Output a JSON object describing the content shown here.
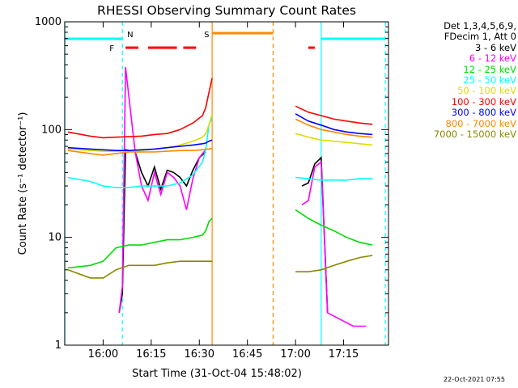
{
  "chart_data": {
    "type": "line",
    "title": "RHESSI Observing Summary Count Rates",
    "xlabel": "Start Time (31-Oct-04 15:48:02)",
    "ylabel": "Count Rate (s⁻¹ detector⁻¹)",
    "yscale": "log",
    "ylim": [
      1,
      1000
    ],
    "xlim": [
      "15:48:02",
      "17:29:00"
    ],
    "x_ticks": [
      "16:00",
      "16:15",
      "16:30",
      "16:45",
      "17:00",
      "17:15"
    ],
    "y_ticks": [
      "1",
      "10",
      "100",
      "1000"
    ],
    "legend_header": [
      "Det 1,3,4,5,6,9,",
      "FDecim 1, Att 0"
    ],
    "legend_position": "top-right",
    "grid": false,
    "series": [
      {
        "name": "3 - 6 keV",
        "color": "#000000",
        "x": [
          "16:05",
          "16:06",
          "16:07",
          "16:10",
          "16:12",
          "16:14",
          "16:16",
          "16:18",
          "16:20",
          "16:22",
          "16:24",
          "16:26",
          "16:28",
          "16:30",
          "16:32",
          "17:02",
          "17:04",
          "17:06",
          "17:08",
          "17:10"
        ],
        "y": [
          2.0,
          3.0,
          65,
          62,
          40,
          30,
          45,
          28,
          42,
          40,
          36,
          30,
          42,
          55,
          62,
          30,
          32,
          48,
          55,
          2.0
        ]
      },
      {
        "name": "6 - 12 keV",
        "color": "#ff00ff",
        "x": [
          "16:05",
          "16:06",
          "16:07",
          "16:10",
          "16:12",
          "16:14",
          "16:16",
          "16:18",
          "16:20",
          "16:22",
          "16:24",
          "16:26",
          "16:28",
          "16:30",
          "16:32",
          "17:02",
          "17:04",
          "17:06",
          "17:08",
          "17:10",
          "17:18",
          "17:22"
        ],
        "y": [
          2.0,
          3.5,
          380,
          62,
          30,
          22,
          40,
          25,
          40,
          36,
          30,
          18,
          35,
          55,
          65,
          20,
          22,
          45,
          50,
          2.0,
          1.5,
          1.5
        ]
      },
      {
        "name": "12 - 25 keV",
        "color": "#00dd00",
        "x": [
          "15:49",
          "15:56",
          "16:00",
          "16:04",
          "16:08",
          "16:12",
          "16:16",
          "16:20",
          "16:24",
          "16:28",
          "16:31",
          "16:32",
          "16:33",
          "16:34",
          "17:00",
          "17:04",
          "17:08",
          "17:12",
          "17:16",
          "17:20",
          "17:24"
        ],
        "y": [
          5.2,
          5.5,
          6.0,
          8.0,
          8.5,
          8.5,
          9.0,
          9.5,
          9.5,
          10.0,
          10.5,
          11.5,
          14.0,
          15.0,
          18.0,
          15.0,
          13.0,
          11.5,
          10.0,
          9.0,
          8.5
        ]
      },
      {
        "name": "25 - 50 keV",
        "color": "#00ffff",
        "x": [
          "15:49",
          "15:56",
          "16:00",
          "16:04",
          "16:08",
          "16:12",
          "16:16",
          "16:20",
          "16:24",
          "16:28",
          "16:31",
          "16:32",
          "16:33",
          "16:34",
          "17:00",
          "17:04",
          "17:08",
          "17:12",
          "17:16",
          "17:20",
          "17:24"
        ],
        "y": [
          36,
          33,
          30,
          29,
          29,
          30,
          30,
          30,
          32,
          38,
          50,
          65,
          110,
          130,
          36,
          35,
          34,
          34,
          34,
          35,
          35
        ]
      },
      {
        "name": "50 - 100 keV",
        "color": "#dddd00",
        "x": [
          "15:49",
          "15:56",
          "16:00",
          "16:04",
          "16:08",
          "16:12",
          "16:16",
          "16:20",
          "16:24",
          "16:28",
          "16:31",
          "16:32",
          "16:33",
          "16:34",
          "17:00",
          "17:04",
          "17:08",
          "17:12",
          "17:16",
          "17:20",
          "17:24"
        ],
        "y": [
          66,
          64,
          63,
          63,
          63,
          64,
          66,
          68,
          72,
          78,
          85,
          92,
          110,
          140,
          92,
          85,
          80,
          78,
          76,
          74,
          72
        ]
      },
      {
        "name": "100 - 300 keV",
        "color": "#ff0000",
        "x": [
          "15:49",
          "15:56",
          "16:00",
          "16:04",
          "16:08",
          "16:12",
          "16:16",
          "16:20",
          "16:24",
          "16:28",
          "16:31",
          "16:32",
          "16:33",
          "16:34",
          "17:00",
          "17:04",
          "17:08",
          "17:12",
          "17:16",
          "17:20",
          "17:24"
        ],
        "y": [
          95,
          87,
          84,
          85,
          86,
          87,
          90,
          92,
          100,
          115,
          135,
          160,
          220,
          300,
          165,
          145,
          135,
          125,
          120,
          115,
          112
        ]
      },
      {
        "name": "300 - 800 keV",
        "color": "#0000ff",
        "x": [
          "15:49",
          "15:56",
          "16:00",
          "16:04",
          "16:08",
          "16:12",
          "16:16",
          "16:20",
          "16:24",
          "16:28",
          "16:31",
          "16:32",
          "16:33",
          "16:34",
          "17:00",
          "17:04",
          "17:08",
          "17:12",
          "17:16",
          "17:20",
          "17:24"
        ],
        "y": [
          68,
          66,
          65,
          64,
          64,
          65,
          66,
          68,
          70,
          72,
          74,
          75,
          78,
          80,
          140,
          120,
          110,
          100,
          95,
          92,
          90
        ]
      },
      {
        "name": "800 - 7000 keV",
        "color": "#ff8800",
        "x": [
          "15:49",
          "15:56",
          "16:00",
          "16:04",
          "16:08",
          "16:12",
          "16:16",
          "16:20",
          "16:24",
          "16:28",
          "16:31",
          "16:32",
          "16:33",
          "16:34",
          "17:00",
          "17:04",
          "17:08",
          "17:12",
          "17:16",
          "17:20",
          "17:24"
        ],
        "y": [
          64,
          60,
          58,
          60,
          62,
          62,
          62,
          63,
          64,
          64,
          65,
          66,
          66,
          67,
          125,
          110,
          100,
          95,
          90,
          87,
          85
        ]
      },
      {
        "name": "7000 - 15000 keV",
        "color": "#888800",
        "x": [
          "15:49",
          "15:56",
          "16:00",
          "16:04",
          "16:08",
          "16:12",
          "16:16",
          "16:20",
          "16:24",
          "16:28",
          "16:31",
          "16:32",
          "16:33",
          "16:34",
          "17:00",
          "17:04",
          "17:08",
          "17:12",
          "17:16",
          "17:20",
          "17:24"
        ],
        "y": [
          5.0,
          4.2,
          4.2,
          5.0,
          5.5,
          5.5,
          5.5,
          5.8,
          6.0,
          6.0,
          6.0,
          6.0,
          6.0,
          6.0,
          4.8,
          4.8,
          5.0,
          5.5,
          6.0,
          6.5,
          6.8
        ]
      }
    ],
    "annotations": [
      {
        "label": "N",
        "x": "16:06",
        "color": "#00ffff"
      },
      {
        "label": "F",
        "x": "16:05",
        "color": "#ff0000"
      },
      {
        "label": "S",
        "x": "16:34",
        "color": "#ff8800"
      }
    ],
    "bands": [
      {
        "kind": "night",
        "color": "#00ffff",
        "segments": [
          [
            "15:48",
            "16:06"
          ],
          [
            "17:08",
            "17:28"
          ]
        ]
      },
      {
        "kind": "saa",
        "color": "#ff8800",
        "segments": [
          [
            "16:34",
            "16:53"
          ]
        ]
      },
      {
        "kind": "flare",
        "color": "#ff0000",
        "segments": [
          [
            "16:07",
            "16:11"
          ],
          [
            "16:14",
            "16:23"
          ],
          [
            "16:25",
            "16:29"
          ],
          [
            "17:04",
            "17:06"
          ]
        ]
      }
    ],
    "vlines": [
      {
        "x": "15:48",
        "color": "#00ffff",
        "style": "solid"
      },
      {
        "x": "16:06",
        "color": "#00ffff",
        "style": "dashed"
      },
      {
        "x": "16:34",
        "color": "#ff8800",
        "style": "solid"
      },
      {
        "x": "16:53",
        "color": "#ff8800",
        "style": "dashed"
      },
      {
        "x": "17:08",
        "color": "#00ffff",
        "style": "solid"
      },
      {
        "x": "17:28",
        "color": "#00ffff",
        "style": "dashed"
      }
    ]
  },
  "timestamp": "22-Oct-2021 07:55"
}
